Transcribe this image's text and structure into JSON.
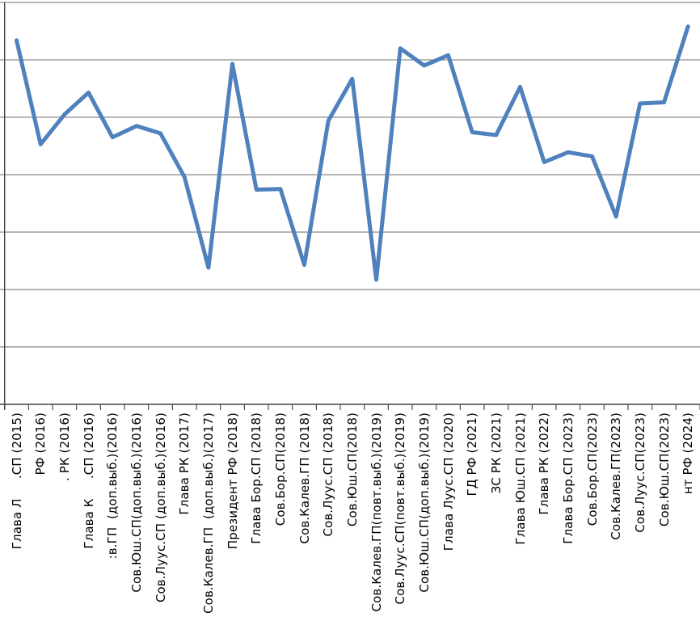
{
  "chart_data": {
    "type": "line",
    "title": "",
    "xlabel": "",
    "ylabel": "",
    "legend": "none",
    "grid": "horizontal",
    "y_axis": {
      "labels_visible": false,
      "min": 0,
      "max": 7,
      "gridline_step": 1,
      "gridline_count": 7
    },
    "categories": [
      "Глава Л     .СП (2015)",
      "РФ (2016)",
      ". РК (2016)",
      "Глава К     .СП (2016)",
      ":в.ГП  (доп.выб.)(2016)",
      "Сов.Юш.СП(доп.выб.)(2016)",
      "Сов.Луус.СП (доп.выб.)(2016)",
      "Глава РК (2017)",
      "Сов.Калев.ГП  (доп.выб.)(2017)",
      "Президент РФ (2018)",
      "Глава Бор.СП (2018)",
      "Сов.Бор.СП(2018)",
      "Сов.Калев.ГП (2018)",
      "Сов.Луус.СП (2018)",
      "Сов.Юш.СП(2018)",
      "Сов.Калев.ГП(повт.выб.)(2019)",
      "Сов.Луус.СП(повт.выб.)(2019)",
      "Сов.Юш.СП(доп.выб.)(2019)",
      "Глава Луус.СП (2020)",
      "ГД РФ (2021)",
      "ЗС РК (2021)",
      "Глава Юш.СП (2021)",
      "Глава РК (2022)",
      "Глава Бор.СП (2023)",
      "Сов.Бор.СП(2023)",
      "Сов.Калев.ГП(2023)",
      "Сов.Луус.СП(2023)",
      "Сов.Юш.СП(2023)",
      "нт РФ (2024)"
    ],
    "values": [
      6.34,
      4.53,
      5.05,
      5.43,
      4.65,
      4.85,
      4.72,
      3.96,
      2.38,
      5.93,
      3.74,
      3.75,
      2.43,
      4.94,
      5.67,
      2.17,
      6.2,
      5.9,
      6.08,
      4.74,
      4.69,
      5.53,
      4.22,
      4.39,
      4.32,
      3.27,
      5.24,
      5.26,
      6.58
    ]
  },
  "colors": {
    "line": "#4F81BD",
    "gridline": "#8a8a8a",
    "axis": "#404040",
    "text": "#000000",
    "background": "#ffffff"
  }
}
